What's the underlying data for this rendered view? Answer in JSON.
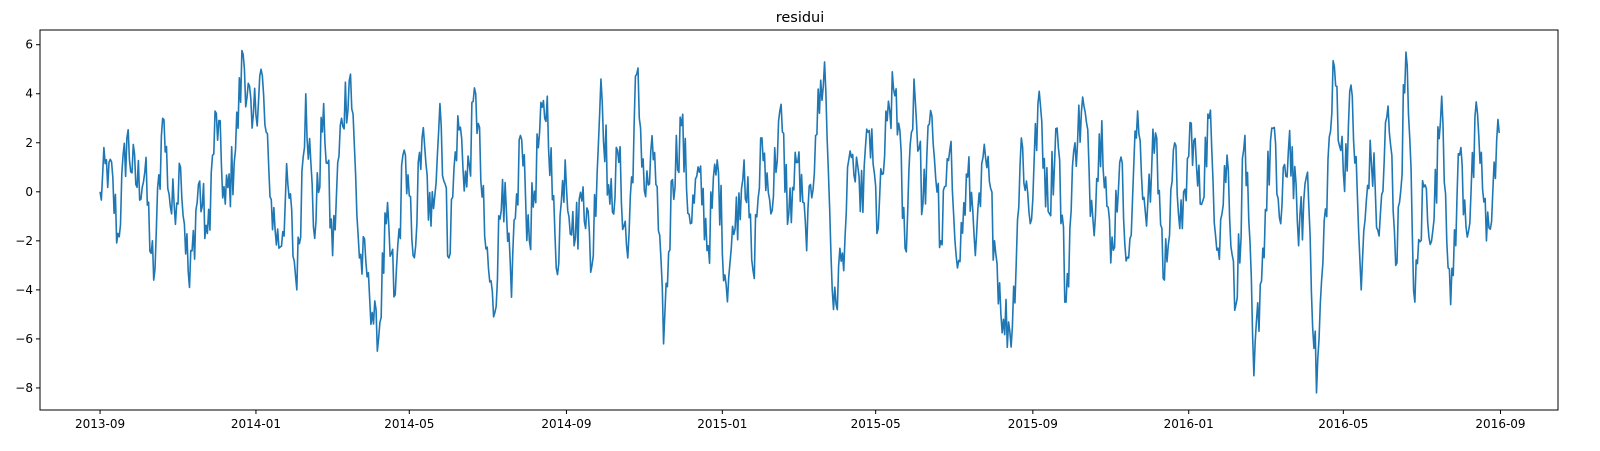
{
  "chart_data": {
    "type": "line",
    "title": "residui",
    "xlabel": "",
    "ylabel": "",
    "x_start": "2013-09-01",
    "x_end": "2016-08-31",
    "xlim": [
      "2013-07-16",
      "2016-10-16"
    ],
    "ylim": [
      -8.9,
      6.6
    ],
    "xticks": [
      "2013-09",
      "2014-01",
      "2014-05",
      "2014-09",
      "2015-01",
      "2015-05",
      "2015-09",
      "2016-01",
      "2016-05",
      "2016-09"
    ],
    "yticks": [
      -8,
      -6,
      -4,
      -2,
      0,
      2,
      4,
      6
    ],
    "grid": false,
    "color": "#1f77b4",
    "series": [
      {
        "points": [
          [
            "2013-09-01",
            0.0
          ],
          [
            "2013-09-08",
            1.2
          ],
          [
            "2013-09-15",
            -1.7
          ],
          [
            "2013-09-22",
            2.2
          ],
          [
            "2013-09-29",
            0.3
          ],
          [
            "2013-10-06",
            0.8
          ],
          [
            "2013-10-13",
            -3.6
          ],
          [
            "2013-10-20",
            3.0
          ],
          [
            "2013-10-27",
            -0.9
          ],
          [
            "2013-11-03",
            1.0
          ],
          [
            "2013-11-10",
            -3.9
          ],
          [
            "2013-11-17",
            0.3
          ],
          [
            "2013-11-24",
            -1.7
          ],
          [
            "2013-12-01",
            3.2
          ],
          [
            "2013-12-08",
            -0.5
          ],
          [
            "2013-12-15",
            1.2
          ],
          [
            "2013-12-22",
            5.6
          ],
          [
            "2013-12-29",
            2.6
          ],
          [
            "2014-01-05",
            5.0
          ],
          [
            "2014-01-12",
            -0.2
          ],
          [
            "2014-01-19",
            -2.3
          ],
          [
            "2014-01-26",
            0.3
          ],
          [
            "2014-02-02",
            -4.0
          ],
          [
            "2014-02-09",
            4.0
          ],
          [
            "2014-02-16",
            -1.9
          ],
          [
            "2014-02-23",
            3.6
          ],
          [
            "2014-03-02",
            -2.6
          ],
          [
            "2014-03-09",
            3.0
          ],
          [
            "2014-03-16",
            4.8
          ],
          [
            "2014-03-23",
            -2.7
          ],
          [
            "2014-03-30",
            -3.3
          ],
          [
            "2014-04-06",
            -6.5
          ],
          [
            "2014-04-13",
            -1.3
          ],
          [
            "2014-04-20",
            -4.2
          ],
          [
            "2014-04-27",
            1.7
          ],
          [
            "2014-05-04",
            -2.6
          ],
          [
            "2014-05-11",
            2.2
          ],
          [
            "2014-05-18",
            -1.4
          ],
          [
            "2014-05-25",
            3.6
          ],
          [
            "2014-06-01",
            -2.7
          ],
          [
            "2014-06-08",
            3.1
          ],
          [
            "2014-06-15",
            0.2
          ],
          [
            "2014-06-22",
            4.0
          ],
          [
            "2014-06-29",
            -1.8
          ],
          [
            "2014-07-06",
            -5.1
          ],
          [
            "2014-07-13",
            0.5
          ],
          [
            "2014-07-20",
            -4.3
          ],
          [
            "2014-07-27",
            2.3
          ],
          [
            "2014-08-03",
            -2.0
          ],
          [
            "2014-08-10",
            1.8
          ],
          [
            "2014-08-17",
            3.9
          ],
          [
            "2014-08-24",
            -3.1
          ],
          [
            "2014-08-31",
            1.3
          ],
          [
            "2014-09-07",
            -2.2
          ],
          [
            "2014-09-14",
            0.2
          ],
          [
            "2014-09-21",
            -3.0
          ],
          [
            "2014-09-28",
            4.6
          ],
          [
            "2014-10-05",
            -0.5
          ],
          [
            "2014-10-12",
            1.2
          ],
          [
            "2014-10-19",
            -2.7
          ],
          [
            "2014-10-26",
            4.8
          ],
          [
            "2014-11-02",
            -0.2
          ],
          [
            "2014-11-09",
            1.6
          ],
          [
            "2014-11-16",
            -6.2
          ],
          [
            "2014-11-23",
            0.5
          ],
          [
            "2014-11-30",
            2.7
          ],
          [
            "2014-12-07",
            -1.3
          ],
          [
            "2014-12-14",
            0.8
          ],
          [
            "2014-12-21",
            -2.2
          ],
          [
            "2014-12-28",
            1.3
          ],
          [
            "2015-01-04",
            -3.8
          ],
          [
            "2015-01-11",
            -1.5
          ],
          [
            "2015-01-18",
            1.3
          ],
          [
            "2015-01-25",
            -3.2
          ],
          [
            "2015-02-01",
            2.2
          ],
          [
            "2015-02-08",
            -0.9
          ],
          [
            "2015-02-15",
            3.3
          ],
          [
            "2015-02-22",
            -0.9
          ],
          [
            "2015-03-01",
            1.2
          ],
          [
            "2015-03-08",
            -2.4
          ],
          [
            "2015-03-15",
            2.3
          ],
          [
            "2015-03-22",
            5.3
          ],
          [
            "2015-03-29",
            -4.8
          ],
          [
            "2015-04-05",
            -2.5
          ],
          [
            "2015-04-12",
            1.4
          ],
          [
            "2015-04-19",
            -0.8
          ],
          [
            "2015-04-26",
            2.5
          ],
          [
            "2015-05-03",
            -1.5
          ],
          [
            "2015-05-10",
            2.9
          ],
          [
            "2015-05-17",
            4.2
          ],
          [
            "2015-05-24",
            -2.3
          ],
          [
            "2015-05-31",
            4.6
          ],
          [
            "2015-06-07",
            -0.5
          ],
          [
            "2015-06-14",
            3.1
          ],
          [
            "2015-06-21",
            -2.0
          ],
          [
            "2015-06-28",
            1.7
          ],
          [
            "2015-07-05",
            -2.8
          ],
          [
            "2015-07-12",
            0.6
          ],
          [
            "2015-07-19",
            -1.7
          ],
          [
            "2015-07-26",
            1.4
          ],
          [
            "2015-08-02",
            -2.0
          ],
          [
            "2015-08-09",
            -5.2
          ],
          [
            "2015-08-16",
            -5.5
          ],
          [
            "2015-08-23",
            2.2
          ],
          [
            "2015-08-30",
            -1.3
          ],
          [
            "2015-09-06",
            4.1
          ],
          [
            "2015-09-13",
            -0.8
          ],
          [
            "2015-09-20",
            2.6
          ],
          [
            "2015-09-27",
            -4.5
          ],
          [
            "2015-10-04",
            2.0
          ],
          [
            "2015-10-11",
            3.5
          ],
          [
            "2015-10-18",
            -1.1
          ],
          [
            "2015-10-25",
            2.9
          ],
          [
            "2015-11-01",
            -2.9
          ],
          [
            "2015-11-08",
            1.2
          ],
          [
            "2015-11-15",
            -2.7
          ],
          [
            "2015-11-22",
            3.3
          ],
          [
            "2015-11-29",
            -1.4
          ],
          [
            "2015-12-06",
            2.4
          ],
          [
            "2015-12-13",
            -3.6
          ],
          [
            "2015-12-20",
            1.7
          ],
          [
            "2015-12-27",
            -1.5
          ],
          [
            "2016-01-03",
            2.8
          ],
          [
            "2016-01-10",
            -0.5
          ],
          [
            "2016-01-17",
            3.0
          ],
          [
            "2016-01-24",
            -2.3
          ],
          [
            "2016-01-31",
            1.5
          ],
          [
            "2016-02-07",
            -4.6
          ],
          [
            "2016-02-14",
            2.3
          ],
          [
            "2016-02-21",
            -7.5
          ],
          [
            "2016-02-28",
            -2.3
          ],
          [
            "2016-03-06",
            2.6
          ],
          [
            "2016-03-13",
            -1.3
          ],
          [
            "2016-03-20",
            2.5
          ],
          [
            "2016-03-27",
            -2.2
          ],
          [
            "2016-04-03",
            0.8
          ],
          [
            "2016-04-10",
            -8.2
          ],
          [
            "2016-04-17",
            -0.7
          ],
          [
            "2016-04-24",
            5.1
          ],
          [
            "2016-05-01",
            0.8
          ],
          [
            "2016-05-08",
            3.9
          ],
          [
            "2016-05-15",
            -4.0
          ],
          [
            "2016-05-22",
            2.1
          ],
          [
            "2016-05-29",
            -1.8
          ],
          [
            "2016-06-05",
            3.5
          ],
          [
            "2016-06-12",
            -2.9
          ],
          [
            "2016-06-19",
            5.7
          ],
          [
            "2016-06-26",
            -4.5
          ],
          [
            "2016-07-03",
            0.2
          ],
          [
            "2016-07-10",
            -1.6
          ],
          [
            "2016-07-17",
            3.9
          ],
          [
            "2016-07-24",
            -4.6
          ],
          [
            "2016-07-31",
            1.5
          ],
          [
            "2016-08-07",
            -1.6
          ],
          [
            "2016-08-14",
            3.2
          ],
          [
            "2016-08-21",
            -2.0
          ],
          [
            "2016-08-31",
            2.4
          ]
        ]
      }
    ]
  }
}
